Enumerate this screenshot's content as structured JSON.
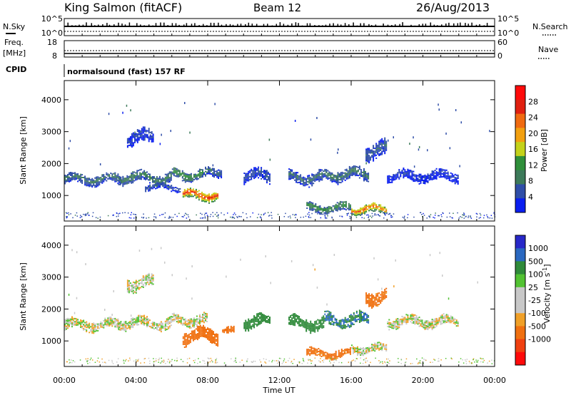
{
  "header": {
    "station": "King Salmon (fitACF)",
    "beam": "Beam 12",
    "date": "26/Aug/2013"
  },
  "strips": {
    "nsky_label": "N.Sky",
    "nsky_ticks": [
      "10^5",
      "10^0"
    ],
    "nsearch_label": "N.Search",
    "nsearch_ticks": [
      "10^5",
      "10^0"
    ],
    "freq_label": "Freq.",
    "freq_unit": "[MHz]",
    "freq_ticks": [
      "18",
      "8"
    ],
    "nave_label": "Nave",
    "nave_ticks": [
      "60",
      "0"
    ],
    "cpid_label": "CPID",
    "cpid_value": "normalsound (fast) 157 RF"
  },
  "colors": {
    "power": [
      "#0a1ef0",
      "#2f4ea8",
      "#3d7a5a",
      "#2f8f3a",
      "#c4d21a",
      "#f2a010",
      "#f06a10",
      "#e02010",
      "#ff0a0a"
    ],
    "velocity": [
      "#2828c8",
      "#2a68c0",
      "#2f8a3a",
      "#52c232",
      "#c8c8c8",
      "#c8c8c8",
      "#f0a028",
      "#f07010",
      "#f04010",
      "#ff0a0a"
    ]
  },
  "chart_data": [
    {
      "type": "heatmap",
      "name": "power",
      "ylabel": "Slant Range [km]",
      "yticks": [
        "1000",
        "2000",
        "3000",
        "4000"
      ],
      "ylim": [
        200,
        4600
      ],
      "colorbar_label": "Power [dB]",
      "colorbar_ticks": [
        "4",
        "8",
        "12",
        "16",
        "20",
        "24",
        "28"
      ],
      "colorbar_range": [
        0,
        32
      ],
      "blobs": [
        {
          "t0": 0.0,
          "t1": 3.2,
          "r": 1500,
          "dr": 300,
          "v": 9
        },
        {
          "t0": 3.0,
          "t1": 6.0,
          "r": 1550,
          "dr": 320,
          "v": 10
        },
        {
          "t0": 6.0,
          "t1": 8.0,
          "r": 1650,
          "dr": 300,
          "v": 12
        },
        {
          "t0": 8.0,
          "t1": 8.8,
          "r": 1750,
          "dr": 250,
          "v": 8
        },
        {
          "t0": 4.5,
          "t1": 6.5,
          "r": 1250,
          "dr": 200,
          "v": 6
        },
        {
          "t0": 6.6,
          "t1": 8.6,
          "r": 1000,
          "dr": 280,
          "v": 27
        },
        {
          "t0": 10.0,
          "t1": 11.5,
          "r": 1600,
          "dr": 350,
          "v": 6
        },
        {
          "t0": 12.5,
          "t1": 14.5,
          "r": 1550,
          "dr": 350,
          "v": 8
        },
        {
          "t0": 14.5,
          "t1": 17.0,
          "r": 1650,
          "dr": 350,
          "v": 9
        },
        {
          "t0": 16.8,
          "t1": 18.0,
          "r": 2400,
          "dr": 450,
          "v": 7
        },
        {
          "t0": 13.5,
          "t1": 16.0,
          "r": 600,
          "dr": 250,
          "v": 12
        },
        {
          "t0": 16.0,
          "t1": 18.0,
          "r": 550,
          "dr": 250,
          "v": 24
        },
        {
          "t0": 18.0,
          "t1": 22.0,
          "r": 1600,
          "dr": 300,
          "v": 4
        },
        {
          "t0": 3.5,
          "t1": 5.0,
          "r": 2800,
          "dr": 400,
          "v": 5
        }
      ]
    },
    {
      "type": "heatmap",
      "name": "velocity",
      "ylabel": "Slant Range [km]",
      "yticks": [
        "1000",
        "2000",
        "3000",
        "4000"
      ],
      "ylim": [
        200,
        4600
      ],
      "xlabel": "Time UT",
      "xticks": [
        "00:00",
        "04:00",
        "08:00",
        "12:00",
        "16:00",
        "20:00",
        "00:00"
      ],
      "xlim": [
        0,
        24
      ],
      "colorbar_label": "Velocity [m s^-1]",
      "colorbar_ticks": [
        "1000",
        "500",
        "100",
        "25",
        "-25",
        "-100",
        "-500",
        "-1000"
      ],
      "blobs": [
        {
          "t0": 0.0,
          "t1": 3.2,
          "r": 1500,
          "dr": 300,
          "v": 0
        },
        {
          "t0": 3.0,
          "t1": 6.0,
          "r": 1550,
          "dr": 320,
          "v": 0
        },
        {
          "t0": 6.0,
          "t1": 8.0,
          "r": 1650,
          "dr": 300,
          "v": 0
        },
        {
          "t0": 6.6,
          "t1": 8.6,
          "r": 1150,
          "dr": 400,
          "v": -200
        },
        {
          "t0": 8.8,
          "t1": 9.5,
          "r": 1300,
          "dr": 200,
          "v": -300
        },
        {
          "t0": 10.0,
          "t1": 11.5,
          "r": 1600,
          "dr": 350,
          "v": 200
        },
        {
          "t0": 12.5,
          "t1": 14.5,
          "r": 1550,
          "dr": 350,
          "v": 300
        },
        {
          "t0": 14.5,
          "t1": 17.0,
          "r": 1650,
          "dr": 350,
          "v": 500
        },
        {
          "t0": 16.8,
          "t1": 18.0,
          "r": 2400,
          "dr": 450,
          "v": -150
        },
        {
          "t0": 13.5,
          "t1": 16.0,
          "r": 600,
          "dr": 250,
          "v": -150
        },
        {
          "t0": 16.0,
          "t1": 18.0,
          "r": 750,
          "dr": 250,
          "v": 0
        },
        {
          "t0": 18.0,
          "t1": 22.0,
          "r": 1600,
          "dr": 300,
          "v": 0
        },
        {
          "t0": 3.5,
          "t1": 5.0,
          "r": 2800,
          "dr": 400,
          "v": 0
        }
      ]
    }
  ]
}
